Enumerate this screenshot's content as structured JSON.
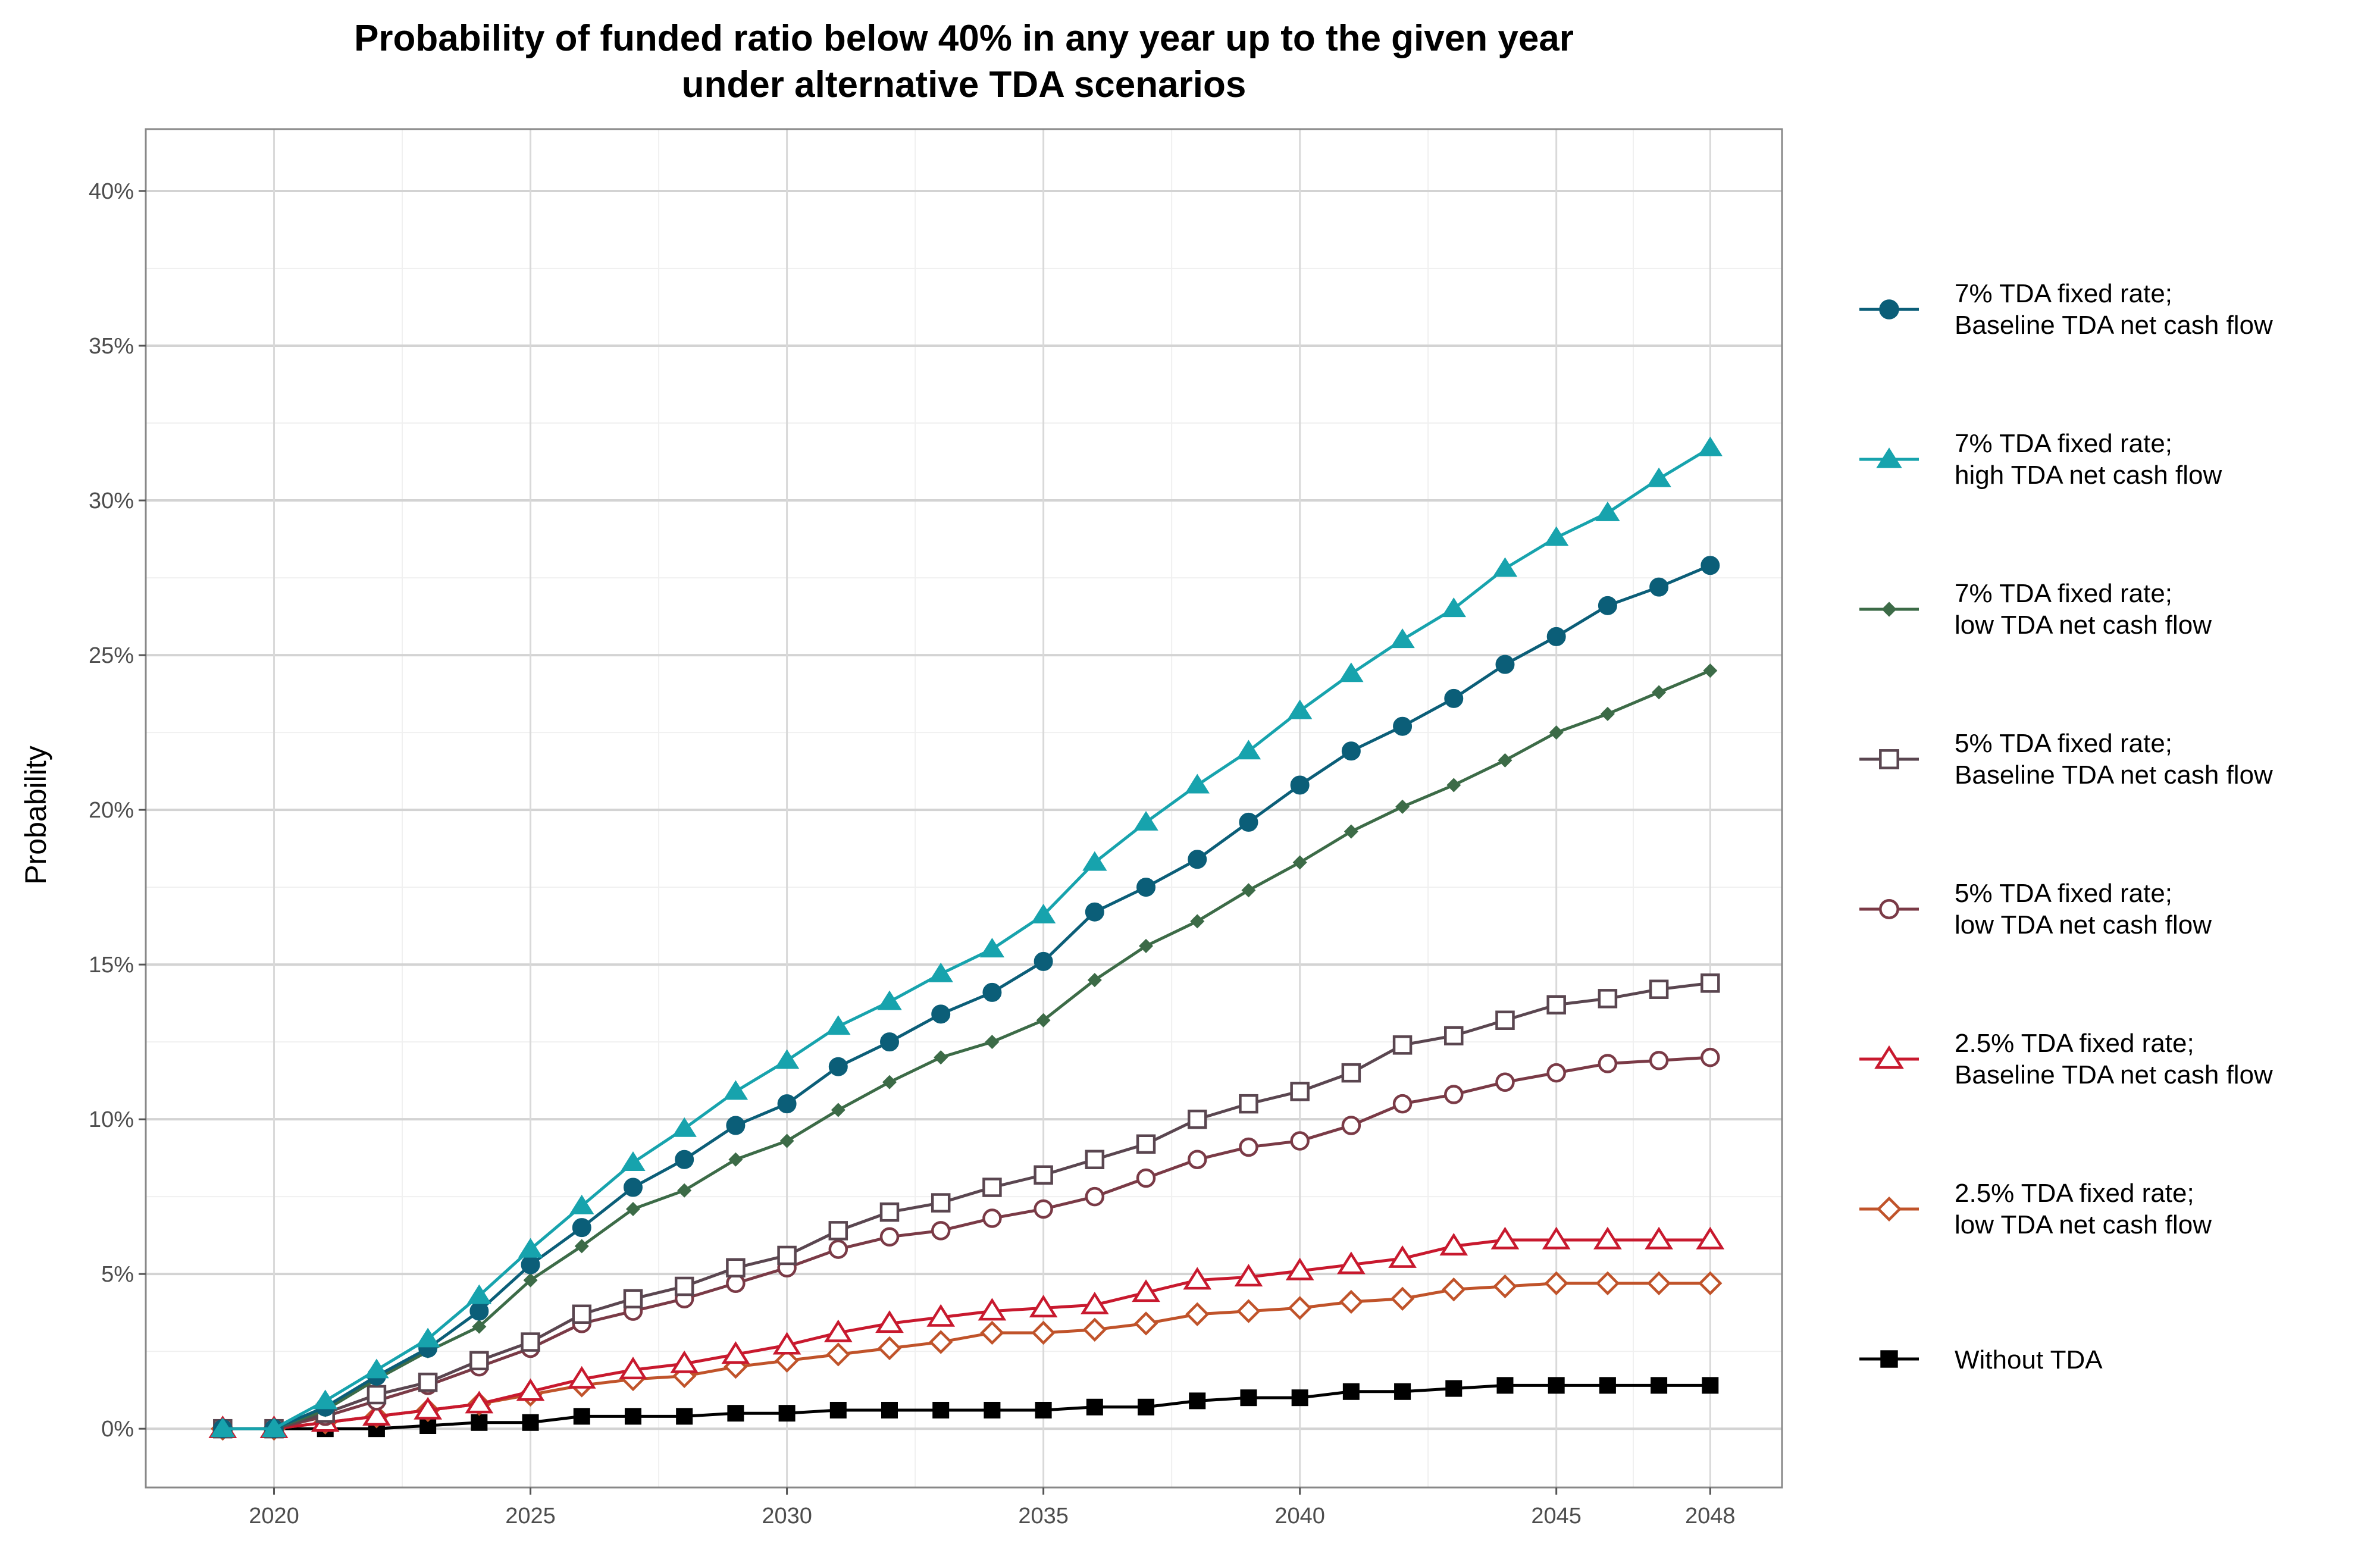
{
  "chart_data": {
    "type": "line",
    "title": [
      "Probability of funded ratio below 40% in any year up to the given year",
      "under alternative TDA scenarios"
    ],
    "xlabel": "",
    "ylabel": "Probability",
    "xlim": [
      2017.5,
      2049.4
    ],
    "ylim": [
      -0.019,
      0.42
    ],
    "x_ticks": [
      2020,
      2025,
      2030,
      2035,
      2040,
      2045,
      2048
    ],
    "y_ticks": [
      0,
      0.05,
      0.1,
      0.15,
      0.2,
      0.25,
      0.3,
      0.35,
      0.4
    ],
    "y_tick_labels": [
      "0%",
      "5%",
      "10%",
      "15%",
      "20%",
      "25%",
      "30%",
      "35%",
      "40%"
    ],
    "grid": true,
    "legend_position": "right",
    "x": [
      2019,
      2020,
      2021,
      2022,
      2023,
      2024,
      2025,
      2026,
      2027,
      2028,
      2029,
      2030,
      2031,
      2032,
      2033,
      2034,
      2035,
      2036,
      2037,
      2038,
      2039,
      2040,
      2041,
      2042,
      2043,
      2044,
      2045,
      2046,
      2047,
      2048
    ],
    "series": [
      {
        "name": [
          "7% TDA fixed rate;",
          "Baseline TDA net cash flow"
        ],
        "color": "#0b5e78",
        "marker": "circle-filled",
        "values": [
          0,
          0,
          0.007,
          0.017,
          0.026,
          0.038,
          0.053,
          0.065,
          0.078,
          0.087,
          0.098,
          0.105,
          0.117,
          0.125,
          0.134,
          0.141,
          0.151,
          0.167,
          0.175,
          0.184,
          0.196,
          0.208,
          0.219,
          0.227,
          0.236,
          0.247,
          0.256,
          0.266,
          0.272,
          0.279
        ]
      },
      {
        "name": [
          "7% TDA fixed rate;",
          "high TDA net cash flow"
        ],
        "color": "#17a3ad",
        "marker": "triangle-filled",
        "values": [
          0,
          0,
          0.009,
          0.019,
          0.029,
          0.043,
          0.058,
          0.072,
          0.086,
          0.097,
          0.109,
          0.119,
          0.13,
          0.138,
          0.147,
          0.155,
          0.166,
          0.183,
          0.196,
          0.208,
          0.219,
          0.232,
          0.244,
          0.255,
          0.265,
          0.278,
          0.288,
          0.296,
          0.307,
          0.317
        ]
      },
      {
        "name": [
          "7% TDA fixed rate;",
          "low  TDA net cash flow"
        ],
        "color": "#3c6b47",
        "marker": "diamond-filled",
        "values": [
          0,
          0,
          0.006,
          0.016,
          0.025,
          0.033,
          0.048,
          0.059,
          0.071,
          0.077,
          0.087,
          0.093,
          0.103,
          0.112,
          0.12,
          0.125,
          0.132,
          0.145,
          0.156,
          0.164,
          0.174,
          0.183,
          0.193,
          0.201,
          0.208,
          0.216,
          0.225,
          0.231,
          0.238,
          0.245
        ]
      },
      {
        "name": [
          "5% TDA fixed rate;",
          "Baseline TDA net cash flow"
        ],
        "color": "#5a4650",
        "marker": "square-open",
        "values": [
          0,
          0,
          0.005,
          0.011,
          0.015,
          0.022,
          0.028,
          0.037,
          0.042,
          0.046,
          0.052,
          0.056,
          0.064,
          0.07,
          0.073,
          0.078,
          0.082,
          0.087,
          0.092,
          0.1,
          0.105,
          0.109,
          0.115,
          0.124,
          0.127,
          0.132,
          0.137,
          0.139,
          0.142,
          0.144
        ]
      },
      {
        "name": [
          "5% TDA fixed rate;",
          "low TDA net cash flow"
        ],
        "color": "#7a3a46",
        "marker": "circle-open",
        "values": [
          0,
          0,
          0.004,
          0.009,
          0.014,
          0.02,
          0.026,
          0.034,
          0.038,
          0.042,
          0.047,
          0.052,
          0.058,
          0.062,
          0.064,
          0.068,
          0.071,
          0.075,
          0.081,
          0.087,
          0.091,
          0.093,
          0.098,
          0.105,
          0.108,
          0.112,
          0.115,
          0.118,
          0.119,
          0.12
        ]
      },
      {
        "name": [
          "2.5% TDA fixed rate;",
          "Baseline TDA net cash flow"
        ],
        "color": "#c8192e",
        "marker": "triangle-open",
        "values": [
          0,
          0,
          0.002,
          0.004,
          0.006,
          0.008,
          0.012,
          0.016,
          0.019,
          0.021,
          0.024,
          0.027,
          0.031,
          0.034,
          0.036,
          0.038,
          0.039,
          0.04,
          0.044,
          0.048,
          0.049,
          0.051,
          0.053,
          0.055,
          0.059,
          0.061,
          0.061,
          0.061,
          0.061,
          0.061
        ]
      },
      {
        "name": [
          "2.5% TDA fixed rate;",
          "low TDA net cash flow"
        ],
        "color": "#c0532a",
        "marker": "diamond-open",
        "values": [
          0,
          0,
          0.002,
          0.004,
          0.006,
          0.008,
          0.011,
          0.014,
          0.016,
          0.017,
          0.02,
          0.022,
          0.024,
          0.026,
          0.028,
          0.031,
          0.031,
          0.032,
          0.034,
          0.037,
          0.038,
          0.039,
          0.041,
          0.042,
          0.045,
          0.046,
          0.047,
          0.047,
          0.047,
          0.047
        ]
      },
      {
        "name": [
          "Without TDA"
        ],
        "color": "#000000",
        "marker": "square-filled",
        "values": [
          0,
          0,
          0,
          0,
          0.001,
          0.002,
          0.002,
          0.004,
          0.004,
          0.004,
          0.005,
          0.005,
          0.006,
          0.006,
          0.006,
          0.006,
          0.006,
          0.007,
          0.007,
          0.009,
          0.01,
          0.01,
          0.012,
          0.012,
          0.013,
          0.014,
          0.014,
          0.014,
          0.014,
          0.014
        ]
      }
    ]
  }
}
